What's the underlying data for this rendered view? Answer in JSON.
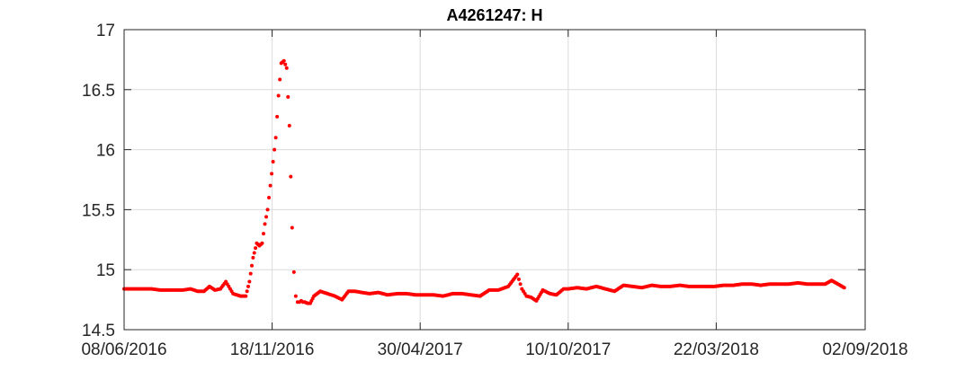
{
  "chart_data": {
    "type": "scatter",
    "title": "A4261247: H",
    "xlabel": "",
    "ylabel": "",
    "xlim": [
      "2016-06-08",
      "2018-09-02"
    ],
    "ylim": [
      14.5,
      17
    ],
    "x_ticks": [
      "2016-06-08",
      "2016-11-18",
      "2017-04-30",
      "2017-10-10",
      "2018-03-22",
      "2018-09-02"
    ],
    "x_tick_labels": [
      "08/06/2016",
      "18/11/2016",
      "30/04/2017",
      "10/10/2017",
      "22/03/2018",
      "02/09/2018"
    ],
    "y_ticks": [
      14.5,
      15,
      15.5,
      16,
      16.5,
      17
    ],
    "y_tick_labels": [
      "14.5",
      "15",
      "15.5",
      "16",
      "16.5",
      "17"
    ],
    "grid": true,
    "marker_color": "#ff0000",
    "series": [
      {
        "x": [
          "2016-06-08",
          "2016-06-18",
          "2016-06-28",
          "2016-07-08",
          "2016-07-18",
          "2016-07-28",
          "2016-08-05",
          "2016-08-12",
          "2016-08-20",
          "2016-08-28",
          "2016-09-04",
          "2016-09-10",
          "2016-09-16",
          "2016-09-22",
          "2016-09-28",
          "2016-10-06",
          "2016-10-14",
          "2016-10-20",
          "2016-10-24",
          "2016-10-28",
          "2016-11-01",
          "2016-11-04",
          "2016-11-07",
          "2016-11-10",
          "2016-11-13",
          "2016-11-16",
          "2016-11-19",
          "2016-11-22",
          "2016-11-25",
          "2016-11-28",
          "2016-12-01",
          "2016-12-04",
          "2016-12-07",
          "2016-12-10",
          "2016-12-12",
          "2016-12-14",
          "2016-12-16",
          "2016-12-18",
          "2016-12-20",
          "2016-12-22",
          "2016-12-24",
          "2016-12-27",
          "2016-12-30",
          "2017-01-03",
          "2017-01-10",
          "2017-01-18",
          "2017-01-26",
          "2017-02-03",
          "2017-02-10",
          "2017-02-17",
          "2017-02-25",
          "2017-03-05",
          "2017-03-15",
          "2017-03-25",
          "2017-04-05",
          "2017-04-15",
          "2017-04-25",
          "2017-05-05",
          "2017-05-15",
          "2017-05-25",
          "2017-06-05",
          "2017-06-15",
          "2017-06-25",
          "2017-07-05",
          "2017-07-15",
          "2017-07-25",
          "2017-08-05",
          "2017-08-15",
          "2017-08-20",
          "2017-08-25",
          "2017-08-30",
          "2017-09-05",
          "2017-09-12",
          "2017-09-20",
          "2017-09-27",
          "2017-10-05",
          "2017-10-10",
          "2017-10-20",
          "2017-10-30",
          "2017-11-10",
          "2017-11-20",
          "2017-11-30",
          "2017-12-10",
          "2017-12-20",
          "2017-12-30",
          "2018-01-10",
          "2018-01-20",
          "2018-01-30",
          "2018-02-10",
          "2018-02-20",
          "2018-03-01",
          "2018-03-10",
          "2018-03-20",
          "2018-03-30",
          "2018-04-10",
          "2018-04-20",
          "2018-04-30",
          "2018-05-10",
          "2018-05-20",
          "2018-05-30",
          "2018-06-10",
          "2018-06-20",
          "2018-06-30",
          "2018-07-10",
          "2018-07-20",
          "2018-07-27",
          "2018-08-03",
          "2018-08-10"
        ],
        "y": [
          14.84,
          14.84,
          14.84,
          14.84,
          14.83,
          14.83,
          14.83,
          14.83,
          14.84,
          14.82,
          14.82,
          14.86,
          14.83,
          14.84,
          14.9,
          14.8,
          14.78,
          14.78,
          14.9,
          15.1,
          15.22,
          15.2,
          15.22,
          15.38,
          15.5,
          15.7,
          15.9,
          16.1,
          16.45,
          16.72,
          16.74,
          16.68,
          16.2,
          15.35,
          14.98,
          14.78,
          14.73,
          14.73,
          14.74,
          14.73,
          14.73,
          14.72,
          14.72,
          14.78,
          14.82,
          14.8,
          14.78,
          14.75,
          14.82,
          14.82,
          14.81,
          14.8,
          14.81,
          14.79,
          14.8,
          14.8,
          14.79,
          14.79,
          14.79,
          14.78,
          14.8,
          14.8,
          14.79,
          14.78,
          14.83,
          14.83,
          14.86,
          14.96,
          14.84,
          14.78,
          14.77,
          14.74,
          14.83,
          14.8,
          14.79,
          14.84,
          14.84,
          14.85,
          14.84,
          14.86,
          14.84,
          14.82,
          14.87,
          14.86,
          14.85,
          14.87,
          14.86,
          14.86,
          14.87,
          14.86,
          14.86,
          14.86,
          14.86,
          14.87,
          14.87,
          14.88,
          14.88,
          14.87,
          14.88,
          14.88,
          14.88,
          14.89,
          14.88,
          14.88,
          14.88,
          14.91,
          14.88,
          14.85
        ]
      }
    ]
  }
}
